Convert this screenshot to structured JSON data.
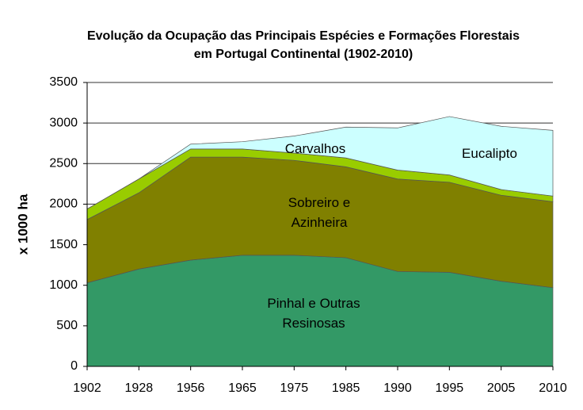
{
  "chart_data": {
    "type": "stacked-area",
    "title": "Evolução da Ocupação das Principais Espécies e Formações Florestais em Portugal Continental (1902-2010)",
    "y_label": "x 1000 ha",
    "categories": [
      "1902",
      "1928",
      "1956",
      "1965",
      "1975",
      "1985",
      "1990",
      "1995",
      "2005",
      "2010"
    ],
    "series": [
      {
        "name": "Pinhal e Outras Resinosas",
        "color": "#339966",
        "values": [
          1030,
          1200,
          1310,
          1370,
          1370,
          1340,
          1170,
          1160,
          1050,
          970
        ]
      },
      {
        "name": "Sobreiro e Azinheira",
        "color": "#808000",
        "values": [
          780,
          940,
          1270,
          1210,
          1170,
          1120,
          1140,
          1110,
          1060,
          1060
        ]
      },
      {
        "name": "Carvalhos",
        "color": "#99cc00",
        "values": [
          130,
          170,
          100,
          100,
          90,
          110,
          110,
          90,
          70,
          70
        ]
      },
      {
        "name": "Eucalipto",
        "color": "#ccffff",
        "values": [
          0,
          0,
          60,
          90,
          210,
          380,
          520,
          720,
          780,
          810
        ]
      }
    ],
    "ylim": [
      0,
      3500
    ],
    "yticks": [
      0,
      500,
      1000,
      1500,
      2000,
      2500,
      3000,
      3500
    ],
    "grid": true
  }
}
